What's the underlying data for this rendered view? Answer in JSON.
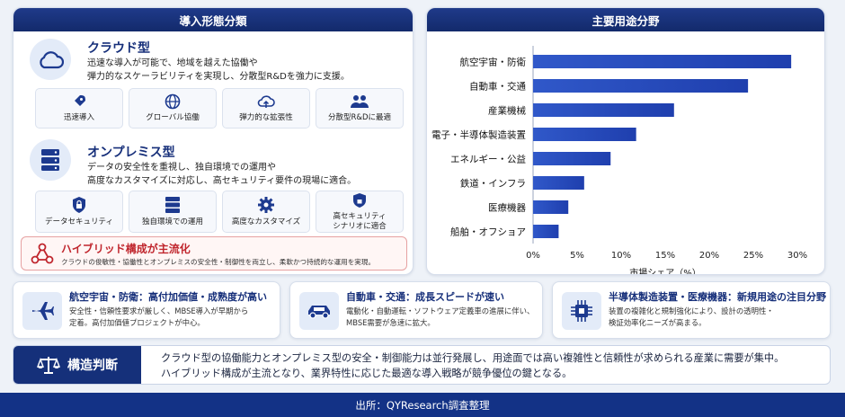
{
  "left_panel": {
    "title": "導入形態分類",
    "cloud": {
      "title": "クラウド型",
      "desc": [
        "迅速な導入が可能で、地域を越えた協働や",
        "弾力的なスケーラビリティを実現し、分散型R&Dを強力に支援。"
      ],
      "chips": [
        {
          "label": "迅速導入",
          "icon": "rocket-icon"
        },
        {
          "label": "グローバル協働",
          "icon": "globe-icon"
        },
        {
          "label": "弾力的な拡張性",
          "icon": "cloud-upload-icon"
        },
        {
          "label": "分散型R&Dに最適",
          "icon": "team-icon"
        }
      ]
    },
    "onprem": {
      "title": "オンプレミス型",
      "desc": [
        "データの安全性を重視し、独自環境での運用や",
        "高度なカスタマイズに対応し、高セキュリティ要件の現場に適合。"
      ],
      "chips": [
        {
          "label": "データセキュリティ",
          "icon": "shield-lock-icon"
        },
        {
          "label": "独自環境での運用",
          "icon": "server-icon"
        },
        {
          "label": "高度なカスタマイズ",
          "icon": "gear-icon"
        },
        {
          "label": "高セキュリティ\nシナリオに適合",
          "icon": "lock-shield-icon"
        }
      ]
    },
    "hybrid": {
      "title": "ハイブリッド構成が主流化",
      "desc": "クラウドの俊敏性・協働性とオンプレミスの安全性・制御性を両立し、柔軟かつ持続的な運用を実現。"
    }
  },
  "right_panel": {
    "title": "主要用途分野"
  },
  "chart_data": {
    "type": "bar",
    "orientation": "horizontal",
    "categories": [
      "航空宇宙・防衛",
      "自動車・交通",
      "産業機械",
      "電子・半導体製造装置",
      "エネルギー・公益",
      "鉄道・インフラ",
      "医療機器",
      "船舶・オフショア"
    ],
    "values": [
      29.3,
      24.4,
      16.0,
      11.7,
      8.8,
      5.8,
      4.0,
      2.9
    ],
    "xlabel": "市場シェア（%）",
    "xlim": [
      0,
      30
    ],
    "xticks": [
      "0%",
      "5%",
      "10%",
      "15%",
      "20%",
      "25%",
      "30%"
    ],
    "grid": false,
    "bar_color": "#1f3fae"
  },
  "cards": [
    {
      "title": "航空宇宙・防衛：高付加価値・成熟度が高い",
      "desc": [
        "安全性・信頼性要求が厳しく、MBSE導入が早期から",
        "定着。高付加価値プロジェクトが中心。"
      ],
      "icon": "airplane-icon"
    },
    {
      "title": "自動車・交通：成長スピードが速い",
      "desc": [
        "電動化・自動運転・ソフトウェア定義車の進展に伴い、",
        "MBSE需要が急速に拡大。"
      ],
      "icon": "car-icon"
    },
    {
      "title": "半導体製造装置・医療機器：新規用途の注目分野",
      "desc": [
        "装置の複雑化と規制強化により、設計の透明性・",
        "検証効率化ニーズが高まる。"
      ],
      "icon": "chip-icon"
    }
  ],
  "conclusion": {
    "label": "構造判断",
    "lines": [
      "クラウド型の協働能力とオンプレミス型の安全・制御能力は並行発展し、用途面では高い複雑性と信頼性が求められる産業に需要が集中。",
      "ハイブリッド構成が主流となり、業界特性に応じた最適な導入戦略が競争優位の鍵となる。"
    ]
  },
  "footer": "出所：QYResearch調査整理",
  "colors": {
    "navy": "#15307a",
    "accent_red": "#c0262d",
    "bar": "#1f3fae"
  }
}
